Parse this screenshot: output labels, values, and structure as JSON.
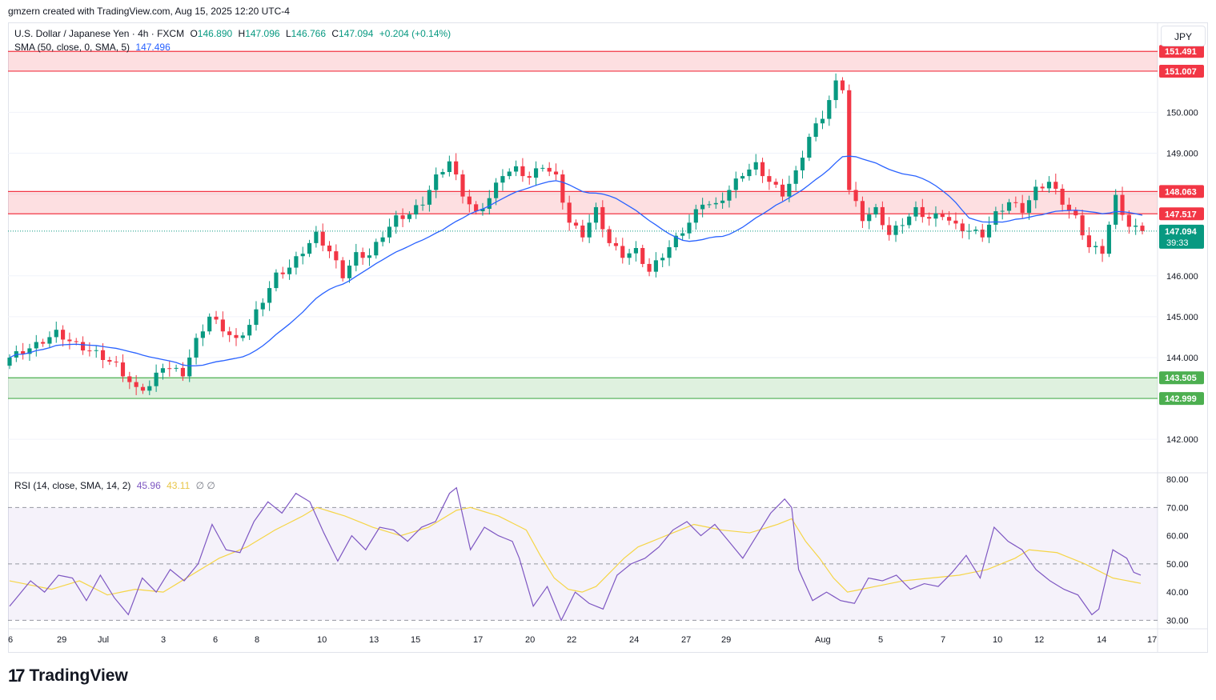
{
  "header": {
    "creator_line": "gmzern created with TradingView.com, Aug 15, 2025 12:20 UTC-4"
  },
  "legend": {
    "symbol": "U.S. Dollar / Japanese Yen · 4h · FXCM",
    "open_label": "O",
    "open": "146.890",
    "high_label": "H",
    "high": "147.096",
    "low_label": "L",
    "low": "146.766",
    "close_label": "C",
    "close": "147.094",
    "change": "+0.204 (+0.14%)",
    "sma_label": "SMA (50, close, 0, SMA, 5)",
    "sma_value": "147.496",
    "rsi_label": "RSI (14, close, SMA, 14, 2)",
    "rsi_value": "45.96",
    "rsi_sma_value": "43.11",
    "rsi_extra": "∅ ∅"
  },
  "currency": "JPY",
  "footer": {
    "brand": "TradingView",
    "logo": "17"
  },
  "colors": {
    "up": "#089981",
    "down": "#f23645",
    "sma": "#2962ff",
    "rsi": "#7e57c2",
    "rsi_sma": "#f5d547",
    "resistance_zone": "#f8c9cc",
    "support_zone": "#c8e6c9"
  },
  "chart_data": [
    {
      "type": "candlestick",
      "title": "U.S. Dollar / Japanese Yen · 4h · FXCM",
      "ylim": [
        141.2,
        152.2
      ],
      "y_ticks": [
        "150.000",
        "149.000",
        "148.000",
        "146.000",
        "145.000",
        "144.000",
        "142.000"
      ],
      "x_ticks": [
        "6",
        "29",
        "Jul",
        "3",
        "6",
        "8",
        "10",
        "13",
        "15",
        "17",
        "20",
        "22",
        "24",
        "27",
        "29",
        "Aug",
        "5",
        "7",
        "10",
        "12",
        "14",
        "17"
      ],
      "close_anchors": [
        [
          0,
          144.0
        ],
        [
          4,
          144.3
        ],
        [
          7,
          144.6
        ],
        [
          10,
          144.3
        ],
        [
          13,
          144.1
        ],
        [
          16,
          143.8
        ],
        [
          19,
          143.2
        ],
        [
          21,
          143.3
        ],
        [
          23,
          143.8
        ],
        [
          26,
          143.6
        ],
        [
          28,
          144.4
        ],
        [
          30,
          145.0
        ],
        [
          32,
          144.7
        ],
        [
          34,
          144.4
        ],
        [
          36,
          144.8
        ],
        [
          38,
          145.4
        ],
        [
          40,
          146.0
        ],
        [
          42,
          146.2
        ],
        [
          44,
          146.6
        ],
        [
          46,
          147.0
        ],
        [
          48,
          146.6
        ],
        [
          50,
          146.0
        ],
        [
          52,
          146.5
        ],
        [
          54,
          146.5
        ],
        [
          56,
          147.0
        ],
        [
          58,
          147.4
        ],
        [
          60,
          147.5
        ],
        [
          62,
          147.8
        ],
        [
          64,
          148.4
        ],
        [
          66,
          148.8
        ],
        [
          68,
          148.0
        ],
        [
          70,
          147.5
        ],
        [
          72,
          147.9
        ],
        [
          74,
          148.5
        ],
        [
          76,
          148.6
        ],
        [
          78,
          148.4
        ],
        [
          80,
          148.7
        ],
        [
          82,
          148.4
        ],
        [
          84,
          147.3
        ],
        [
          86,
          147.0
        ],
        [
          88,
          147.6
        ],
        [
          90,
          146.8
        ],
        [
          92,
          146.5
        ],
        [
          94,
          146.6
        ],
        [
          96,
          146.1
        ],
        [
          98,
          146.5
        ],
        [
          100,
          146.9
        ],
        [
          102,
          147.3
        ],
        [
          104,
          147.8
        ],
        [
          106,
          147.7
        ],
        [
          108,
          148.1
        ],
        [
          110,
          148.5
        ],
        [
          112,
          148.7
        ],
        [
          114,
          148.3
        ],
        [
          116,
          148.0
        ],
        [
          118,
          148.5
        ],
        [
          120,
          149.4
        ],
        [
          122,
          149.9
        ],
        [
          124,
          150.7
        ],
        [
          125,
          150.6
        ],
        [
          126,
          148.1
        ],
        [
          128,
          147.4
        ],
        [
          130,
          147.6
        ],
        [
          132,
          147.0
        ],
        [
          134,
          147.3
        ],
        [
          136,
          147.6
        ],
        [
          138,
          147.4
        ],
        [
          140,
          147.5
        ],
        [
          142,
          147.2
        ],
        [
          144,
          147.1
        ],
        [
          146,
          147.0
        ],
        [
          148,
          147.5
        ],
        [
          150,
          147.8
        ],
        [
          152,
          147.6
        ],
        [
          154,
          148.1
        ],
        [
          156,
          148.3
        ],
        [
          158,
          147.8
        ],
        [
          160,
          147.4
        ],
        [
          162,
          146.7
        ],
        [
          164,
          146.6
        ],
        [
          166,
          147.9
        ],
        [
          168,
          147.2
        ],
        [
          170,
          147.094
        ]
      ],
      "sma": {
        "name": "SMA (50, close, 0, SMA, 5)",
        "last": 147.496
      },
      "zones": [
        {
          "from": 151.007,
          "to": 151.491,
          "kind": "resistance"
        },
        {
          "from": 147.517,
          "to": 148.063,
          "kind": "resistance"
        },
        {
          "from": 142.999,
          "to": 143.505,
          "kind": "support"
        }
      ],
      "price_labels": [
        {
          "price": 151.491,
          "text": "151.491",
          "kind": "resistance"
        },
        {
          "price": 151.007,
          "text": "151.007",
          "kind": "resistance"
        },
        {
          "price": 148.063,
          "text": "148.063",
          "kind": "resistance"
        },
        {
          "price": 147.517,
          "text": "147.517",
          "kind": "resistance"
        },
        {
          "price": 147.094,
          "text": "147.094",
          "sub": "39:33",
          "kind": "last"
        },
        {
          "price": 143.505,
          "text": "143.505",
          "kind": "support"
        },
        {
          "price": 142.999,
          "text": "142.999",
          "kind": "support"
        }
      ],
      "last_price": 147.094
    },
    {
      "type": "line",
      "title": "RSI (14, close, SMA, 14, 2)",
      "ylim": [
        27,
        82
      ],
      "y_ticks": [
        "80.00",
        "70.00",
        "60.00",
        "50.00",
        "40.00",
        "30.00"
      ],
      "levels": [
        70,
        50,
        30
      ],
      "rsi_anchors": [
        [
          0,
          35
        ],
        [
          3,
          44
        ],
        [
          5,
          40
        ],
        [
          7,
          46
        ],
        [
          9,
          45
        ],
        [
          11,
          37
        ],
        [
          13,
          46
        ],
        [
          15,
          38
        ],
        [
          17,
          32
        ],
        [
          19,
          45
        ],
        [
          21,
          40
        ],
        [
          23,
          48
        ],
        [
          25,
          44
        ],
        [
          27,
          50
        ],
        [
          29,
          64
        ],
        [
          31,
          55
        ],
        [
          33,
          54
        ],
        [
          35,
          65
        ],
        [
          37,
          72
        ],
        [
          39,
          68
        ],
        [
          41,
          75
        ],
        [
          43,
          72
        ],
        [
          45,
          61
        ],
        [
          47,
          51
        ],
        [
          49,
          60
        ],
        [
          51,
          55
        ],
        [
          53,
          63
        ],
        [
          55,
          62
        ],
        [
          57,
          58
        ],
        [
          59,
          63
        ],
        [
          61,
          65
        ],
        [
          63,
          75
        ],
        [
          64,
          77
        ],
        [
          66,
          55
        ],
        [
          68,
          63
        ],
        [
          70,
          60
        ],
        [
          72,
          58
        ],
        [
          73,
          52
        ],
        [
          75,
          35
        ],
        [
          77,
          42
        ],
        [
          79,
          30
        ],
        [
          81,
          40
        ],
        [
          83,
          36
        ],
        [
          85,
          34
        ],
        [
          87,
          46
        ],
        [
          89,
          50
        ],
        [
          91,
          52
        ],
        [
          93,
          56
        ],
        [
          95,
          62
        ],
        [
          97,
          65
        ],
        [
          99,
          60
        ],
        [
          101,
          64
        ],
        [
          103,
          58
        ],
        [
          105,
          52
        ],
        [
          107,
          60
        ],
        [
          109,
          68
        ],
        [
          111,
          73
        ],
        [
          112,
          70
        ],
        [
          113,
          48
        ],
        [
          115,
          37
        ],
        [
          117,
          40
        ],
        [
          119,
          37
        ],
        [
          121,
          36
        ],
        [
          123,
          45
        ],
        [
          125,
          44
        ],
        [
          127,
          46
        ],
        [
          129,
          41
        ],
        [
          131,
          43
        ],
        [
          133,
          42
        ],
        [
          135,
          47
        ],
        [
          137,
          53
        ],
        [
          139,
          45
        ],
        [
          141,
          63
        ],
        [
          143,
          58
        ],
        [
          145,
          55
        ],
        [
          147,
          48
        ],
        [
          149,
          44
        ],
        [
          151,
          41
        ],
        [
          153,
          39
        ],
        [
          155,
          32
        ],
        [
          156,
          34
        ],
        [
          158,
          55
        ],
        [
          160,
          52
        ],
        [
          161,
          47
        ],
        [
          162,
          46
        ]
      ],
      "rsi_sma_anchors": [
        [
          0,
          44
        ],
        [
          6,
          41
        ],
        [
          10,
          44
        ],
        [
          14,
          39
        ],
        [
          18,
          41
        ],
        [
          22,
          40
        ],
        [
          26,
          46
        ],
        [
          30,
          52
        ],
        [
          34,
          56
        ],
        [
          38,
          62
        ],
        [
          42,
          67
        ],
        [
          44,
          70
        ],
        [
          48,
          67
        ],
        [
          52,
          63
        ],
        [
          56,
          60
        ],
        [
          60,
          63
        ],
        [
          64,
          69
        ],
        [
          66,
          70
        ],
        [
          70,
          67
        ],
        [
          74,
          62
        ],
        [
          76,
          53
        ],
        [
          78,
          45
        ],
        [
          80,
          41
        ],
        [
          82,
          40
        ],
        [
          84,
          42
        ],
        [
          86,
          47
        ],
        [
          88,
          52
        ],
        [
          90,
          56
        ],
        [
          94,
          60
        ],
        [
          98,
          64
        ],
        [
          102,
          62
        ],
        [
          106,
          61
        ],
        [
          110,
          64
        ],
        [
          112,
          66
        ],
        [
          114,
          58
        ],
        [
          116,
          52
        ],
        [
          118,
          45
        ],
        [
          120,
          40
        ],
        [
          124,
          42
        ],
        [
          128,
          44
        ],
        [
          132,
          45
        ],
        [
          136,
          46
        ],
        [
          140,
          48
        ],
        [
          144,
          52
        ],
        [
          146,
          55
        ],
        [
          150,
          54
        ],
        [
          154,
          50
        ],
        [
          158,
          45
        ],
        [
          162,
          43.11
        ]
      ],
      "rsi_last": 45.96,
      "rsi_sma_last": 43.11
    }
  ]
}
